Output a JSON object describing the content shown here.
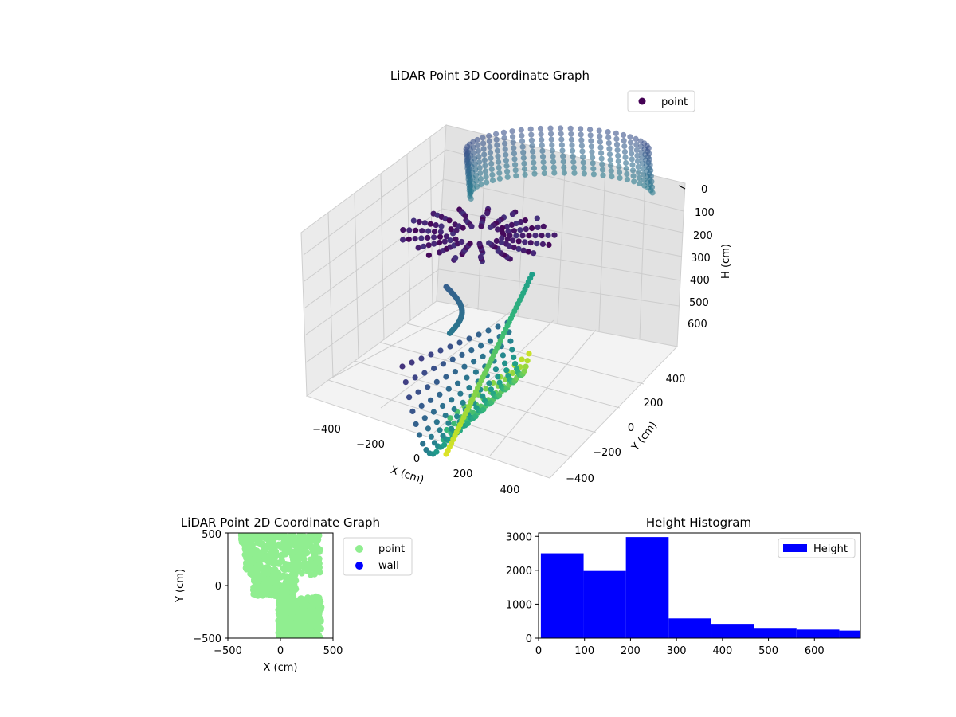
{
  "chart_data": [
    {
      "type": "scatter",
      "title": "LiDAR Point 3D Coordinate Graph",
      "xlabel": "X (cm)",
      "ylabel": "Y (cm)",
      "zlabel": "H (cm)",
      "legend": {
        "entries": [
          "point"
        ],
        "placement": "upper-right"
      },
      "x_ticks": [
        "−400",
        "−200",
        "0",
        "200",
        "400"
      ],
      "y_ticks": [
        "−400",
        "−200",
        "0",
        "200",
        "400"
      ],
      "z_ticks": [
        "0",
        "100",
        "200",
        "300",
        "400",
        "500",
        "600"
      ],
      "xlim": [
        -500,
        500
      ],
      "ylim": [
        -500,
        500
      ],
      "zlim": [
        0,
        700
      ],
      "z_inverted": true,
      "colormap": "viridis",
      "point_color": "#440154",
      "grid": true,
      "series": [
        {
          "name": "point",
          "description_points": [
            {
              "x": -120,
              "y": -420,
              "h": 650
            },
            {
              "x": 60,
              "y": -380,
              "h": 520
            },
            {
              "x": 20,
              "y": -260,
              "h": 330
            },
            {
              "x": -150,
              "y": 40,
              "h": 150
            },
            {
              "x": 250,
              "y": 300,
              "h": 180
            },
            {
              "x": 300,
              "y": 420,
              "h": 20
            },
            {
              "x": -300,
              "y": 350,
              "h": 30
            }
          ]
        }
      ]
    },
    {
      "type": "scatter",
      "title": "LiDAR Point 2D Coordinate Graph",
      "xlabel": "X (cm)",
      "ylabel": "Y (cm)",
      "x_ticks": [
        "−500",
        "0",
        "500"
      ],
      "y_ticks": [
        "500",
        "0",
        "−500"
      ],
      "xlim": [
        -500,
        500
      ],
      "ylim": [
        -500,
        500
      ],
      "legend": {
        "entries": [
          "point",
          "wall"
        ],
        "placement": "outside-right"
      },
      "colors": {
        "point": "#90ee90",
        "wall": "#0000ff"
      },
      "series": [
        {
          "name": "point",
          "region": "dense cloud from x≈-380..400 cm covering y -500..500 cm"
        },
        {
          "name": "wall",
          "values": []
        }
      ]
    },
    {
      "type": "bar",
      "title": "Height Histogram",
      "xlabel": "",
      "ylabel": "",
      "legend": {
        "entries": [
          "Height"
        ],
        "placement": "upper-right"
      },
      "x_ticks": [
        "0",
        "100",
        "200",
        "300",
        "400",
        "500",
        "600"
      ],
      "y_ticks": [
        "0",
        "1000",
        "2000",
        "3000"
      ],
      "xlim": [
        0,
        700
      ],
      "ylim": [
        0,
        3100
      ],
      "color": "#0000ff",
      "bins": [
        {
          "start": 5,
          "end": 98,
          "count": 2500
        },
        {
          "start": 98,
          "end": 190,
          "count": 1980
        },
        {
          "start": 190,
          "end": 283,
          "count": 2980
        },
        {
          "start": 283,
          "end": 376,
          "count": 580
        },
        {
          "start": 376,
          "end": 469,
          "count": 420
        },
        {
          "start": 469,
          "end": 561,
          "count": 300
        },
        {
          "start": 561,
          "end": 654,
          "count": 250
        },
        {
          "start": 654,
          "end": 700,
          "count": 220
        }
      ]
    }
  ]
}
